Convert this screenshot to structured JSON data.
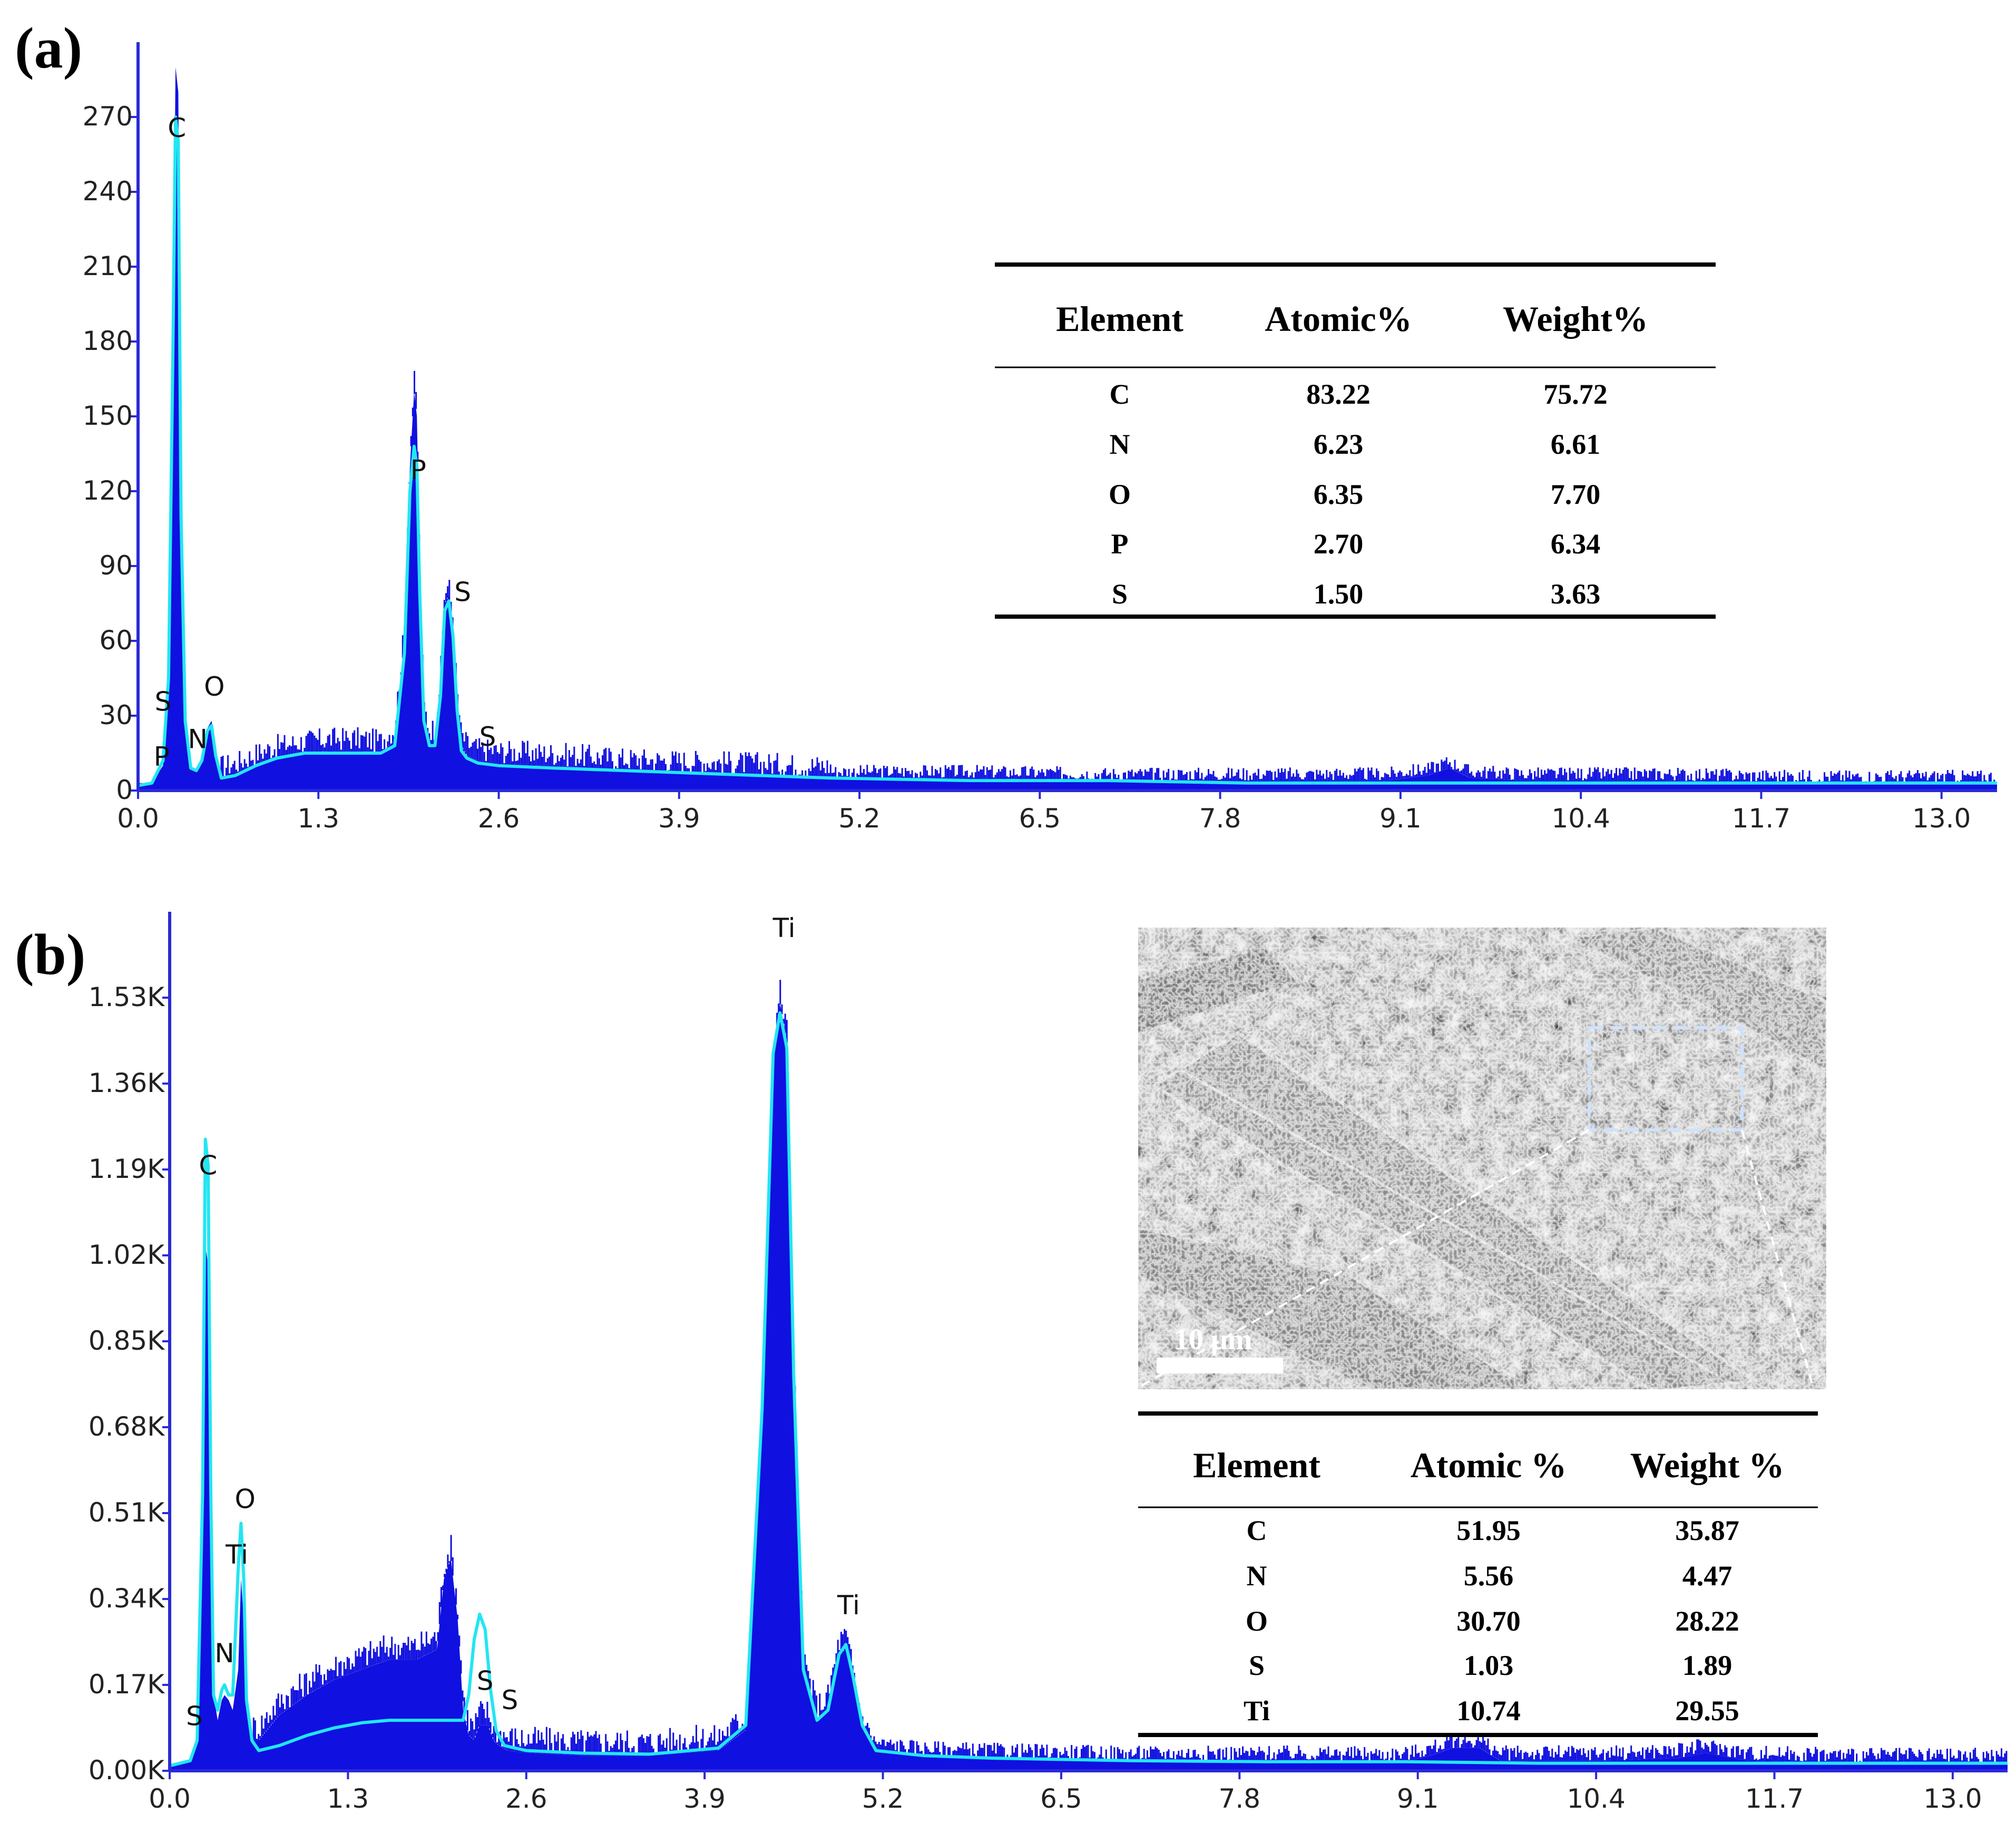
{
  "chart_data": [
    {
      "panel_label": "(a)",
      "type": "area",
      "x_ticks": [
        "0.0",
        "1.3",
        "2.6",
        "3.9",
        "5.2",
        "6.5",
        "7.8",
        "9.1",
        "10.4",
        "11.7",
        "13.0"
      ],
      "y_ticks": [
        "0",
        "30",
        "60",
        "90",
        "120",
        "150",
        "180",
        "210",
        "240",
        "270"
      ],
      "xlim": [
        0,
        13.4
      ],
      "ylim": [
        0,
        300
      ],
      "series": [
        {
          "x": [
            0.0,
            0.1,
            0.18,
            0.22,
            0.25,
            0.27,
            0.29,
            0.31,
            0.34,
            0.38,
            0.42,
            0.46,
            0.5,
            0.53,
            0.56,
            0.6,
            0.7,
            0.85,
            1.0,
            1.2,
            1.4,
            1.6,
            1.75,
            1.85,
            1.92,
            1.96,
            1.99,
            2.01,
            2.03,
            2.06,
            2.1,
            2.14,
            2.18,
            2.21,
            2.24,
            2.27,
            2.3,
            2.33,
            2.37,
            2.45,
            2.6,
            3.0,
            3.5,
            4.0,
            4.5,
            5.0,
            6.0,
            7.0,
            8.0,
            9.0,
            9.3,
            9.45,
            9.6,
            10.0,
            11.0,
            12.0,
            13.0,
            13.4
          ],
          "y": [
            3,
            3,
            10,
            40,
            160,
            290,
            280,
            120,
            30,
            10,
            8,
            12,
            25,
            28,
            15,
            5,
            6,
            10,
            13,
            15,
            16,
            16,
            15,
            20,
            60,
            130,
            160,
            150,
            90,
            30,
            20,
            20,
            40,
            75,
            78,
            65,
            35,
            18,
            14,
            12,
            11,
            10,
            8,
            7,
            6,
            5,
            5,
            4,
            4,
            4,
            6,
            9,
            5,
            4,
            4,
            3,
            3,
            3
          ]
        }
      ],
      "fit_curve": {
        "x": [
          0.0,
          0.1,
          0.18,
          0.22,
          0.25,
          0.27,
          0.29,
          0.31,
          0.34,
          0.38,
          0.42,
          0.46,
          0.5,
          0.53,
          0.56,
          0.6,
          0.7,
          0.85,
          1.0,
          1.2,
          1.4,
          1.6,
          1.75,
          1.85,
          1.92,
          1.96,
          1.99,
          2.01,
          2.03,
          2.06,
          2.1,
          2.14,
          2.18,
          2.21,
          2.24,
          2.27,
          2.3,
          2.33,
          2.37,
          2.45,
          2.6,
          3.0,
          3.5,
          4.0,
          4.5,
          5.0,
          6.0,
          7.0,
          8.0,
          9.0,
          10.0,
          11.0,
          12.0,
          13.0,
          13.4
        ],
        "y": [
          2,
          3,
          12,
          45,
          170,
          270,
          260,
          110,
          28,
          9,
          8,
          12,
          24,
          26,
          14,
          5,
          6,
          10,
          13,
          15,
          15,
          15,
          15,
          18,
          55,
          120,
          138,
          130,
          80,
          28,
          18,
          18,
          38,
          72,
          76,
          62,
          32,
          16,
          13,
          11,
          10,
          9,
          8,
          7,
          6,
          5,
          4,
          4,
          3,
          3,
          3,
          3,
          3,
          3,
          3
        ]
      },
      "peak_labels": [
        {
          "text": "C",
          "x": 0.28,
          "y": 262
        },
        {
          "text": "S",
          "x": 0.18,
          "y": 32
        },
        {
          "text": "P",
          "x": 0.17,
          "y": 10
        },
        {
          "text": "O",
          "x": 0.55,
          "y": 38
        },
        {
          "text": "N",
          "x": 0.43,
          "y": 17
        },
        {
          "text": "P",
          "x": 2.02,
          "y": 125
        },
        {
          "text": "S",
          "x": 2.34,
          "y": 76
        },
        {
          "text": "S",
          "x": 2.52,
          "y": 18
        }
      ],
      "table": {
        "headers": [
          "Element",
          "Atomic%",
          "Weight%"
        ],
        "rows": [
          [
            "C",
            "83.22",
            "75.72"
          ],
          [
            "N",
            "6.23",
            "6.61"
          ],
          [
            "O",
            "6.35",
            "7.70"
          ],
          [
            "P",
            "2.70",
            "6.34"
          ],
          [
            "S",
            "1.50",
            "3.63"
          ]
        ]
      }
    },
    {
      "panel_label": "(b)",
      "type": "area",
      "x_ticks": [
        "0.0",
        "1.3",
        "2.6",
        "3.9",
        "5.2",
        "6.5",
        "7.8",
        "9.1",
        "10.4",
        "11.7",
        "13.0"
      ],
      "y_ticks": [
        "0.00K",
        "0.17K",
        "0.34K",
        "0.51K",
        "0.68K",
        "0.85K",
        "1.02K",
        "1.19K",
        "1.36K",
        "1.53K"
      ],
      "xlim": [
        0,
        13.4
      ],
      "ylim": [
        0,
        1700
      ],
      "series": [
        {
          "x": [
            0.0,
            0.15,
            0.2,
            0.24,
            0.26,
            0.28,
            0.3,
            0.32,
            0.35,
            0.38,
            0.4,
            0.43,
            0.46,
            0.5,
            0.52,
            0.54,
            0.56,
            0.6,
            0.65,
            0.8,
            1.0,
            1.2,
            1.4,
            1.6,
            1.8,
            1.95,
            2.0,
            2.05,
            2.1,
            2.14,
            2.18,
            2.22,
            2.26,
            2.32,
            2.36,
            2.4,
            2.46,
            2.6,
            3.0,
            3.5,
            4.0,
            4.2,
            4.32,
            4.4,
            4.45,
            4.5,
            4.55,
            4.62,
            4.72,
            4.8,
            4.88,
            4.93,
            4.98,
            5.05,
            5.15,
            5.5,
            6.0,
            7.0,
            8.0,
            9.0,
            9.2,
            9.35,
            9.55,
            9.7,
            10.5,
            11.0,
            11.2,
            11.5,
            12.5,
            13.4
          ],
          "y": [
            10,
            20,
            60,
            500,
            1040,
            1000,
            500,
            150,
            100,
            140,
            150,
            140,
            120,
            200,
            380,
            300,
            120,
            60,
            60,
            110,
            150,
            180,
            200,
            220,
            220,
            240,
            380,
            420,
            300,
            120,
            70,
            60,
            90,
            90,
            60,
            50,
            40,
            35,
            30,
            30,
            40,
            80,
            700,
            1400,
            1520,
            1440,
            800,
            200,
            100,
            120,
            230,
            240,
            180,
            90,
            40,
            30,
            25,
            20,
            20,
            18,
            30,
            45,
            45,
            20,
            20,
            25,
            35,
            20,
            15,
            15
          ]
        }
      ],
      "fit_curve": {
        "x": [
          0.0,
          0.15,
          0.2,
          0.24,
          0.26,
          0.28,
          0.3,
          0.32,
          0.35,
          0.38,
          0.4,
          0.43,
          0.46,
          0.5,
          0.52,
          0.54,
          0.56,
          0.6,
          0.65,
          0.8,
          1.0,
          1.2,
          1.4,
          1.6,
          1.8,
          1.95,
          2.0,
          2.05,
          2.1,
          2.14,
          2.18,
          2.22,
          2.26,
          2.3,
          2.34,
          2.38,
          2.44,
          2.6,
          3.0,
          3.5,
          4.0,
          4.2,
          4.32,
          4.4,
          4.45,
          4.5,
          4.55,
          4.62,
          4.72,
          4.8,
          4.88,
          4.93,
          4.98,
          5.05,
          5.15,
          5.5,
          6.0,
          7.0,
          8.0,
          9.0,
          10.0,
          11.0,
          12.0,
          13.4
        ],
        "y": [
          10,
          20,
          60,
          550,
          1250,
          1200,
          550,
          150,
          120,
          160,
          170,
          150,
          150,
          400,
          490,
          380,
          140,
          60,
          40,
          50,
          70,
          85,
          95,
          100,
          100,
          100,
          100,
          100,
          100,
          100,
          150,
          260,
          310,
          280,
          160,
          80,
          50,
          40,
          35,
          33,
          45,
          90,
          720,
          1420,
          1500,
          1430,
          780,
          200,
          100,
          120,
          230,
          250,
          190,
          90,
          40,
          30,
          25,
          20,
          18,
          18,
          15,
          15,
          15,
          15
        ]
      },
      "peak_labels": [
        {
          "text": "C",
          "x": 0.28,
          "y": 1180
        },
        {
          "text": "O",
          "x": 0.55,
          "y": 520
        },
        {
          "text": "Ti",
          "x": 0.49,
          "y": 410
        },
        {
          "text": "N",
          "x": 0.4,
          "y": 215
        },
        {
          "text": "S",
          "x": 0.18,
          "y": 90
        },
        {
          "text": "S",
          "x": 2.3,
          "y": 160
        },
        {
          "text": "S",
          "x": 2.48,
          "y": 122
        },
        {
          "text": "Ti",
          "x": 4.48,
          "y": 1650
        },
        {
          "text": "Ti",
          "x": 4.95,
          "y": 310
        }
      ],
      "inset_image": {
        "scale_bar": "10 μm"
      },
      "table": {
        "headers": [
          "Element",
          "Atomic %",
          "Weight %"
        ],
        "rows": [
          [
            "C",
            "51.95",
            "35.87"
          ],
          [
            "N",
            "5.56",
            "4.47"
          ],
          [
            "O",
            "30.70",
            "28.22"
          ],
          [
            "S",
            "1.03",
            "1.89"
          ],
          [
            "Ti",
            "10.74",
            "29.55"
          ]
        ]
      }
    }
  ],
  "colors": {
    "spectrum_fill": "#1010e0",
    "fit_curve": "#22e6f2",
    "axis": "#2a2ad8",
    "text": "#000000",
    "sem_background": "#707070"
  }
}
